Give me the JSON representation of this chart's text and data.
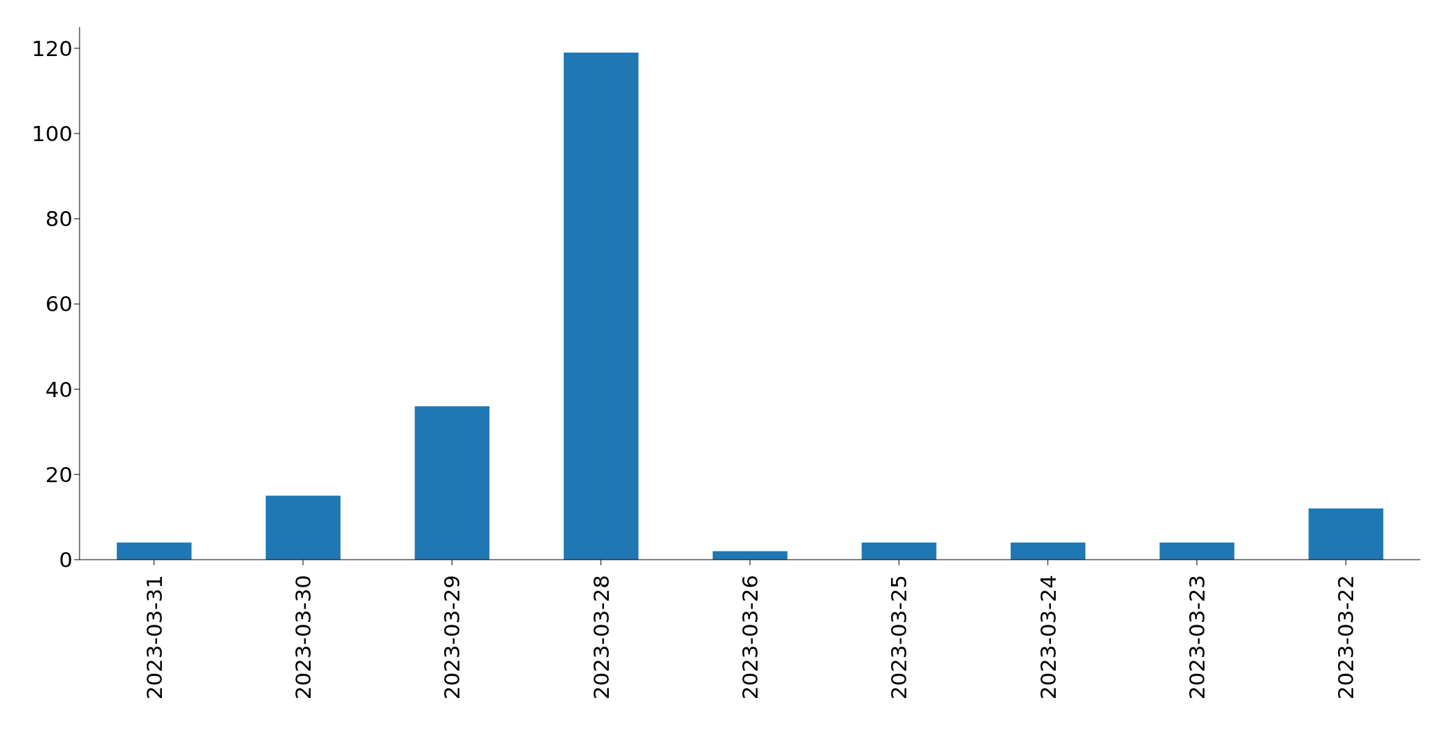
{
  "chart_data": {
    "type": "bar",
    "categories": [
      "2023-03-31",
      "2023-03-30",
      "2023-03-29",
      "2023-03-28",
      "2023-03-26",
      "2023-03-25",
      "2023-03-24",
      "2023-03-23",
      "2023-03-22"
    ],
    "values": [
      4,
      15,
      36,
      119,
      2,
      4,
      4,
      4,
      12
    ],
    "color": "#1f77b4",
    "ylim": [
      0,
      125
    ],
    "yticks": [
      0,
      20,
      40,
      60,
      80,
      100,
      120
    ],
    "grid": false,
    "legend": false
  }
}
